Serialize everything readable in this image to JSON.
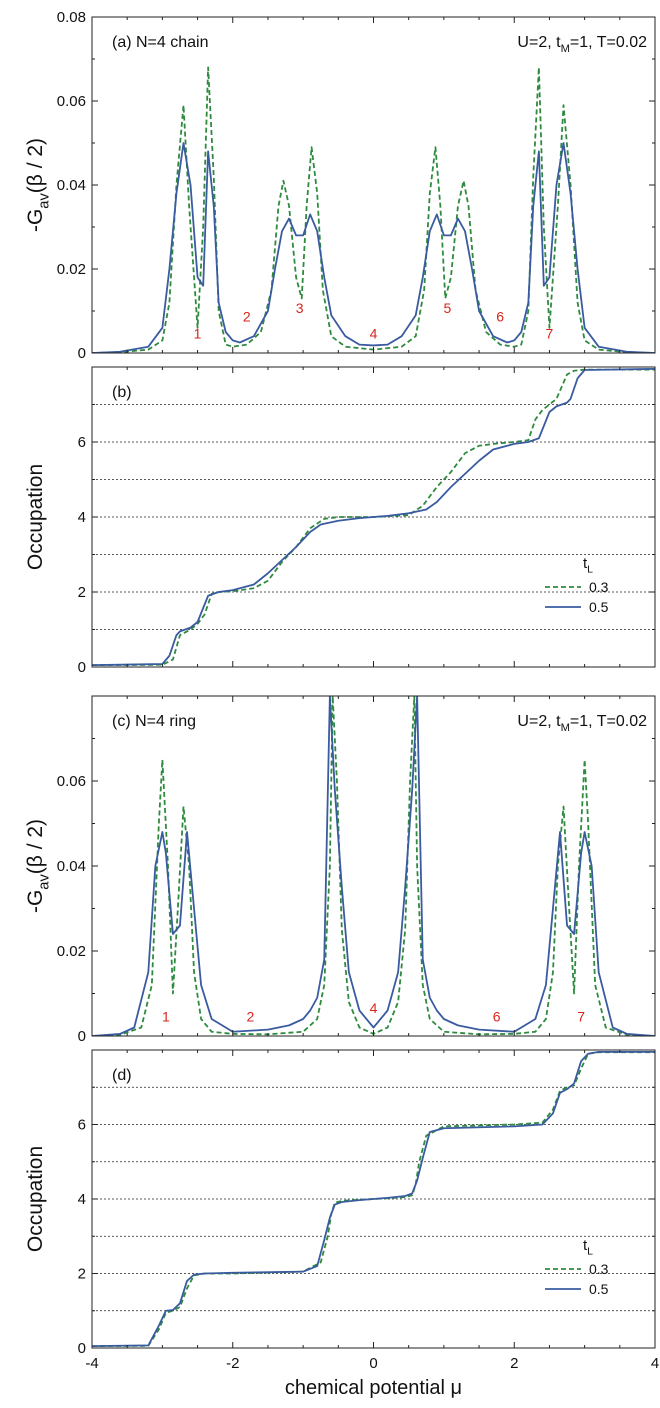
{
  "chart_data": [
    {
      "panel": "a",
      "type": "line",
      "annotation_left": "(a) N=4 chain",
      "annotation_right": {
        "main": "U=2, t",
        "sub": "M",
        "rest": "=1, T=0.02"
      },
      "ylabel": {
        "main": "-G",
        "sub": "av",
        "rest": "(β / 2)"
      },
      "xlim": [
        -4,
        4
      ],
      "ylim": [
        0,
        0.08
      ],
      "yticks": [
        0,
        0.02,
        0.04,
        0.06,
        0.08
      ],
      "ytick_labels": [
        "0",
        "0.02",
        "0.04",
        "0.06",
        "0.08"
      ],
      "peak_labels": [
        {
          "x": -2.5,
          "y": 0.003,
          "text": "1"
        },
        {
          "x": -1.8,
          "y": 0.007,
          "text": "2"
        },
        {
          "x": -1.05,
          "y": 0.009,
          "text": "3"
        },
        {
          "x": 0,
          "y": 0.003,
          "text": "4"
        },
        {
          "x": 1.05,
          "y": 0.009,
          "text": "5"
        },
        {
          "x": 1.8,
          "y": 0.007,
          "text": "6"
        },
        {
          "x": 2.5,
          "y": 0.003,
          "text": "7"
        }
      ],
      "series": [
        {
          "name": "0.3",
          "color": "#2e8b3e",
          "dash": true,
          "x": [
            -4,
            -3.6,
            -3.2,
            -3.0,
            -2.9,
            -2.8,
            -2.7,
            -2.62,
            -2.5,
            -2.42,
            -2.35,
            -2.27,
            -2.2,
            -2.1,
            -2.0,
            -1.8,
            -1.6,
            -1.45,
            -1.35,
            -1.28,
            -1.2,
            -1.1,
            -1.02,
            -0.95,
            -0.88,
            -0.8,
            -0.72,
            -0.6,
            -0.4,
            0,
            0.4,
            0.6,
            0.72,
            0.8,
            0.88,
            0.95,
            1.02,
            1.1,
            1.2,
            1.28,
            1.35,
            1.45,
            1.6,
            1.8,
            2.0,
            2.1,
            2.2,
            2.27,
            2.35,
            2.42,
            2.5,
            2.62,
            2.7,
            2.8,
            2.9,
            3.0,
            3.2,
            3.6,
            4
          ],
          "y": [
            0,
            0.0002,
            0.0008,
            0.003,
            0.012,
            0.04,
            0.059,
            0.035,
            0.006,
            0.03,
            0.068,
            0.042,
            0.01,
            0.002,
            0.0015,
            0.002,
            0.005,
            0.015,
            0.035,
            0.041,
            0.035,
            0.018,
            0.013,
            0.035,
            0.049,
            0.038,
            0.015,
            0.004,
            0.0015,
            0.0008,
            0.0015,
            0.004,
            0.015,
            0.038,
            0.049,
            0.035,
            0.013,
            0.018,
            0.035,
            0.041,
            0.035,
            0.015,
            0.005,
            0.002,
            0.0015,
            0.002,
            0.01,
            0.042,
            0.068,
            0.03,
            0.006,
            0.035,
            0.059,
            0.04,
            0.012,
            0.003,
            0.0008,
            0.0002,
            0
          ]
        },
        {
          "name": "0.5",
          "color": "#3a5ba0",
          "dash": false,
          "x": [
            -4,
            -3.6,
            -3.2,
            -3.0,
            -2.9,
            -2.8,
            -2.7,
            -2.6,
            -2.5,
            -2.42,
            -2.35,
            -2.27,
            -2.2,
            -2.1,
            -2.0,
            -1.9,
            -1.7,
            -1.5,
            -1.4,
            -1.3,
            -1.2,
            -1.1,
            -1.0,
            -0.9,
            -0.8,
            -0.7,
            -0.6,
            -0.4,
            -0.2,
            0,
            0.2,
            0.4,
            0.6,
            0.7,
            0.8,
            0.9,
            1.0,
            1.1,
            1.2,
            1.3,
            1.4,
            1.5,
            1.7,
            1.9,
            2.0,
            2.1,
            2.2,
            2.27,
            2.35,
            2.42,
            2.5,
            2.6,
            2.7,
            2.8,
            2.9,
            3.0,
            3.2,
            3.6,
            4
          ],
          "y": [
            0,
            0.0003,
            0.0015,
            0.006,
            0.02,
            0.038,
            0.05,
            0.04,
            0.018,
            0.016,
            0.048,
            0.035,
            0.012,
            0.005,
            0.003,
            0.0025,
            0.004,
            0.01,
            0.02,
            0.029,
            0.032,
            0.028,
            0.028,
            0.033,
            0.029,
            0.018,
            0.009,
            0.004,
            0.002,
            0.0018,
            0.002,
            0.004,
            0.009,
            0.018,
            0.029,
            0.033,
            0.028,
            0.028,
            0.032,
            0.029,
            0.02,
            0.01,
            0.004,
            0.0025,
            0.003,
            0.005,
            0.012,
            0.035,
            0.048,
            0.016,
            0.018,
            0.04,
            0.05,
            0.038,
            0.02,
            0.006,
            0.0015,
            0.0003,
            0
          ]
        }
      ]
    },
    {
      "panel": "b",
      "type": "line",
      "annotation_left": "(b)",
      "ylabel": "Occupation",
      "xlim": [
        -4,
        4
      ],
      "ylim": [
        0,
        8
      ],
      "yticks": [
        0,
        2,
        4,
        6
      ],
      "ytick_labels": [
        "0",
        "2",
        "4",
        "6"
      ],
      "hlines": [
        1,
        2,
        3,
        4,
        5,
        6,
        7
      ],
      "legend": {
        "title": "t",
        "title_sub": "L",
        "position": "right"
      },
      "series": [
        {
          "name": "0.3",
          "color": "#2e8b3e",
          "dash": true,
          "x": [
            -4,
            -3.0,
            -2.85,
            -2.75,
            -2.6,
            -2.5,
            -2.4,
            -2.3,
            -2.2,
            -2.0,
            -1.7,
            -1.5,
            -1.3,
            -1.1,
            -0.9,
            -0.7,
            -0.5,
            0,
            0.5,
            0.7,
            0.9,
            1.1,
            1.3,
            1.5,
            1.7,
            2.0,
            2.2,
            2.3,
            2.4,
            2.5,
            2.6,
            2.75,
            2.85,
            3.0,
            4
          ],
          "y": [
            0.05,
            0.06,
            0.2,
            0.85,
            1.0,
            1.15,
            1.4,
            1.95,
            2.0,
            2.02,
            2.1,
            2.3,
            2.8,
            3.2,
            3.7,
            3.95,
            4.0,
            4.0,
            4.05,
            4.3,
            4.8,
            5.2,
            5.7,
            5.9,
            5.95,
            6.0,
            6.05,
            6.6,
            6.85,
            7.0,
            7.15,
            7.8,
            7.9,
            7.93,
            7.93
          ]
        },
        {
          "name": "0.5",
          "color": "#3a5ba0",
          "dash": false,
          "x": [
            -4,
            -3.0,
            -2.9,
            -2.8,
            -2.75,
            -2.6,
            -2.5,
            -2.35,
            -2.2,
            -2.0,
            -1.7,
            -1.5,
            -1.3,
            -1.1,
            -0.9,
            -0.75,
            -0.5,
            -0.2,
            0,
            0.2,
            0.5,
            0.75,
            0.9,
            1.1,
            1.3,
            1.5,
            1.7,
            2.0,
            2.2,
            2.35,
            2.5,
            2.6,
            2.75,
            2.8,
            2.9,
            3.0,
            4
          ],
          "y": [
            0.05,
            0.08,
            0.3,
            0.85,
            0.95,
            1.05,
            1.2,
            1.9,
            2.0,
            2.05,
            2.2,
            2.5,
            2.85,
            3.2,
            3.6,
            3.8,
            3.9,
            3.97,
            4.0,
            4.03,
            4.1,
            4.2,
            4.4,
            4.8,
            5.15,
            5.5,
            5.8,
            5.95,
            6.0,
            6.1,
            6.8,
            6.95,
            7.05,
            7.15,
            7.7,
            7.92,
            7.95
          ]
        }
      ]
    },
    {
      "panel": "c",
      "type": "line",
      "annotation_left": "(c) N=4 ring",
      "annotation_right": {
        "main": "U=2, t",
        "sub": "M",
        "rest": "=1, T=0.02"
      },
      "ylabel": {
        "main": "-G",
        "sub": "av",
        "rest": "(β / 2)"
      },
      "xlim": [
        -4,
        4
      ],
      "ylim": [
        0,
        0.08
      ],
      "yticks": [
        0,
        0.02,
        0.04,
        0.06
      ],
      "ytick_labels": [
        "0",
        "0.02",
        "0.04",
        "0.06"
      ],
      "peak_labels": [
        {
          "x": -2.95,
          "y": 0.003,
          "text": "1"
        },
        {
          "x": -1.75,
          "y": 0.003,
          "text": "2"
        },
        {
          "x": 0,
          "y": 0.005,
          "text": "4"
        },
        {
          "x": 1.75,
          "y": 0.003,
          "text": "6"
        },
        {
          "x": 2.95,
          "y": 0.003,
          "text": "7"
        }
      ],
      "series": [
        {
          "name": "0.3",
          "color": "#2e8b3e",
          "dash": true,
          "x": [
            -4,
            -3.6,
            -3.3,
            -3.15,
            -3.05,
            -3.0,
            -2.92,
            -2.85,
            -2.78,
            -2.7,
            -2.62,
            -2.55,
            -2.45,
            -2.3,
            -2.0,
            -1.5,
            -1.0,
            -0.8,
            -0.7,
            -0.62,
            -0.58,
            -0.52,
            -0.45,
            -0.35,
            -0.2,
            0,
            0.2,
            0.35,
            0.45,
            0.52,
            0.58,
            0.62,
            0.7,
            0.8,
            1.0,
            1.5,
            2.0,
            2.3,
            2.45,
            2.55,
            2.62,
            2.7,
            2.78,
            2.85,
            2.92,
            3.0,
            3.05,
            3.15,
            3.3,
            3.6,
            4
          ],
          "y": [
            0,
            0.0003,
            0.002,
            0.012,
            0.05,
            0.065,
            0.04,
            0.01,
            0.03,
            0.054,
            0.04,
            0.015,
            0.004,
            0.001,
            0.0005,
            0.0004,
            0.001,
            0.004,
            0.012,
            0.04,
            0.08,
            0.06,
            0.025,
            0.008,
            0.002,
            0.0005,
            0.002,
            0.008,
            0.025,
            0.06,
            0.08,
            0.04,
            0.012,
            0.004,
            0.001,
            0.0004,
            0.0005,
            0.001,
            0.004,
            0.015,
            0.04,
            0.054,
            0.03,
            0.01,
            0.04,
            0.065,
            0.05,
            0.012,
            0.002,
            0.0003,
            0
          ]
        },
        {
          "name": "0.5",
          "color": "#3a5ba0",
          "dash": false,
          "x": [
            -4,
            -3.6,
            -3.4,
            -3.2,
            -3.1,
            -3.0,
            -2.95,
            -2.85,
            -2.75,
            -2.65,
            -2.55,
            -2.45,
            -2.3,
            -2.0,
            -1.5,
            -1.2,
            -1.0,
            -0.9,
            -0.8,
            -0.7,
            -0.62,
            -0.55,
            -0.45,
            -0.35,
            -0.2,
            0,
            0.2,
            0.35,
            0.45,
            0.55,
            0.62,
            0.7,
            0.8,
            0.9,
            1.0,
            1.2,
            1.5,
            2.0,
            2.3,
            2.45,
            2.55,
            2.65,
            2.75,
            2.85,
            2.95,
            3.0,
            3.1,
            3.2,
            3.4,
            3.6,
            4
          ],
          "y": [
            0,
            0.0005,
            0.002,
            0.015,
            0.04,
            0.048,
            0.043,
            0.024,
            0.026,
            0.048,
            0.03,
            0.012,
            0.004,
            0.001,
            0.0015,
            0.0025,
            0.004,
            0.006,
            0.009,
            0.018,
            0.08,
            0.058,
            0.035,
            0.015,
            0.006,
            0.002,
            0.006,
            0.015,
            0.035,
            0.058,
            0.08,
            0.018,
            0.009,
            0.006,
            0.004,
            0.0025,
            0.0015,
            0.001,
            0.004,
            0.012,
            0.03,
            0.048,
            0.026,
            0.024,
            0.043,
            0.048,
            0.04,
            0.015,
            0.002,
            0.0005,
            0
          ]
        }
      ]
    },
    {
      "panel": "d",
      "type": "line",
      "annotation_left": "(d)",
      "ylabel": "Occupation",
      "xlabel": "chemical potential μ",
      "xlim": [
        -4,
        4
      ],
      "ylim": [
        0,
        8
      ],
      "xticks": [
        -4,
        -2,
        0,
        2,
        4
      ],
      "xtick_labels": [
        "-4",
        "-2",
        "0",
        "2",
        "4"
      ],
      "yticks": [
        0,
        2,
        4,
        6
      ],
      "ytick_labels": [
        "0",
        "2",
        "4",
        "6"
      ],
      "hlines": [
        1,
        2,
        3,
        4,
        5,
        6,
        7
      ],
      "legend": {
        "title": "t",
        "title_sub": "L",
        "position": "right"
      },
      "series": [
        {
          "name": "0.3",
          "color": "#2e8b3e",
          "dash": true,
          "x": [
            -4,
            -3.2,
            -3.05,
            -2.95,
            -2.85,
            -2.75,
            -2.65,
            -2.55,
            -2.4,
            -2.0,
            -1.0,
            -0.75,
            -0.65,
            -0.6,
            -0.55,
            -0.45,
            -0.2,
            0,
            0.2,
            0.45,
            0.55,
            0.6,
            0.65,
            0.75,
            1.0,
            2.0,
            2.4,
            2.55,
            2.65,
            2.75,
            2.85,
            2.95,
            3.05,
            3.2,
            4
          ],
          "y": [
            0.05,
            0.06,
            0.5,
            0.95,
            1.0,
            1.1,
            1.6,
            1.95,
            2.0,
            2.0,
            2.05,
            2.3,
            3.0,
            3.6,
            3.9,
            3.95,
            3.98,
            4.0,
            4.02,
            4.05,
            4.1,
            4.4,
            5.0,
            5.7,
            5.95,
            6.0,
            6.05,
            6.4,
            6.9,
            7.0,
            7.05,
            7.5,
            7.9,
            7.94,
            7.94
          ]
        },
        {
          "name": "0.5",
          "color": "#3a5ba0",
          "dash": false,
          "x": [
            -4,
            -3.2,
            -3.05,
            -2.95,
            -2.85,
            -2.75,
            -2.65,
            -2.55,
            -2.4,
            -2.0,
            -1.0,
            -0.8,
            -0.7,
            -0.62,
            -0.55,
            -0.45,
            -0.2,
            0,
            0.2,
            0.45,
            0.55,
            0.62,
            0.7,
            0.8,
            1.0,
            2.0,
            2.4,
            2.55,
            2.65,
            2.75,
            2.85,
            2.95,
            3.05,
            3.2,
            4
          ],
          "y": [
            0.05,
            0.07,
            0.6,
            1.0,
            1.02,
            1.2,
            1.8,
            1.97,
            2.0,
            2.02,
            2.05,
            2.2,
            2.9,
            3.5,
            3.85,
            3.92,
            3.97,
            4.0,
            4.03,
            4.08,
            4.15,
            4.5,
            5.1,
            5.8,
            5.9,
            5.95,
            6.0,
            6.3,
            6.85,
            6.95,
            7.1,
            7.7,
            7.9,
            7.95,
            7.95
          ]
        }
      ]
    }
  ]
}
